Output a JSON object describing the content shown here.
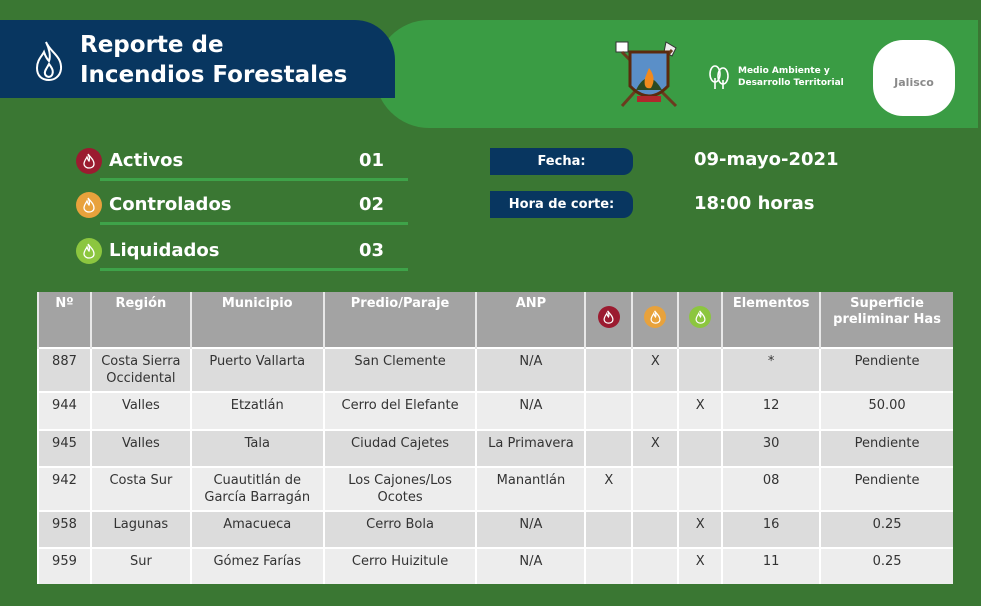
{
  "header": {
    "title_line1": "Reporte de",
    "title_line2": "Incendios Forestales",
    "agency_line1": "Medio Ambiente y",
    "agency_line2": "Desarrollo Territorial",
    "state_logo": "Jalisco"
  },
  "colors": {
    "activo": "#9b1b30",
    "controlado": "#e8a23c",
    "liquidado": "#8cc63f",
    "navy": "#083660"
  },
  "summary": [
    {
      "label": "Activos",
      "value": "01",
      "icon": "fire-icon"
    },
    {
      "label": "Controlados",
      "value": "02",
      "icon": "fire-icon"
    },
    {
      "label": "Liquidados",
      "value": "03",
      "icon": "fire-icon"
    }
  ],
  "info": {
    "fecha_label": "Fecha:",
    "fecha_value": "09-mayo-2021",
    "hora_label": "Hora de corte:",
    "hora_value": "18:00 horas"
  },
  "table": {
    "headers": [
      "Nº",
      "Región",
      "Municipio",
      "Predio/Paraje",
      "ANP",
      "activo-icon",
      "controlado-icon",
      "liquidado-icon",
      "Elementos",
      "Superficie preliminar Has"
    ],
    "rows": [
      [
        "887",
        "Costa Sierra Occidental",
        "Puerto Vallarta",
        "San Clemente",
        "N/A",
        "",
        "X",
        "",
        "*",
        "Pendiente"
      ],
      [
        "944",
        "Valles",
        "Etzatlán",
        "Cerro del Elefante",
        "N/A",
        "",
        "",
        "X",
        "12",
        "50.00"
      ],
      [
        "945",
        "Valles",
        "Tala",
        "Ciudad Cajetes",
        "La Primavera",
        "",
        "X",
        "",
        "30",
        "Pendiente"
      ],
      [
        "942",
        "Costa Sur",
        "Cuautitlán de García Barragán",
        "Los Cajones/Los Ocotes",
        "Manantlán",
        "X",
        "",
        "",
        "08",
        "Pendiente"
      ],
      [
        "958",
        "Lagunas",
        "Amacueca",
        "Cerro Bola",
        "N/A",
        "",
        "",
        "X",
        "16",
        "0.25"
      ],
      [
        "959",
        "Sur",
        "Gómez Farías",
        "Cerro Huizitule",
        "N/A",
        "",
        "",
        "X",
        "11",
        "0.25"
      ]
    ]
  }
}
